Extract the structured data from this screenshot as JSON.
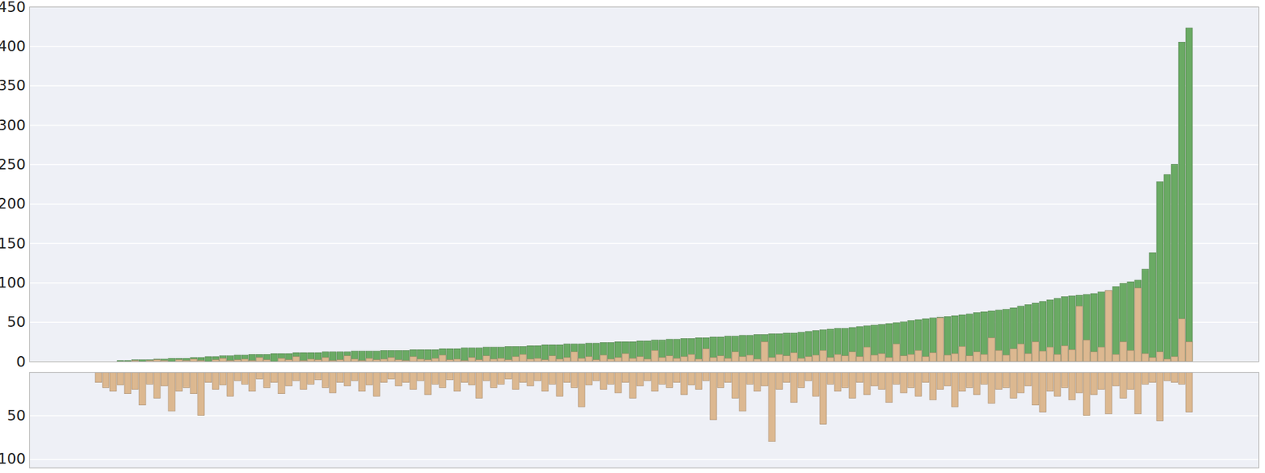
{
  "chart_data": [
    {
      "type": "bar",
      "tick_labels": "y",
      "grid": true,
      "ylim": [
        0,
        450
      ],
      "yticks": [
        0,
        50,
        100,
        150,
        200,
        250,
        300,
        350,
        400,
        450
      ],
      "categories": [
        null,
        null,
        null,
        null,
        null,
        null,
        null,
        null,
        null,
        null,
        null,
        null,
        null,
        null,
        null,
        null,
        null,
        null,
        null,
        null,
        null,
        null,
        null,
        null,
        null,
        null,
        null,
        null,
        null,
        null,
        null,
        null,
        null,
        null,
        null,
        null,
        null,
        null,
        null,
        null,
        null,
        null,
        null,
        null,
        null,
        null,
        null,
        null,
        null,
        null,
        null,
        null,
        null,
        null,
        null,
        null,
        null,
        null,
        null,
        null,
        null,
        null,
        null,
        null,
        null,
        null,
        null,
        null,
        null,
        null,
        null,
        null,
        null,
        null,
        null,
        null,
        null,
        null,
        null,
        null,
        null,
        null,
        null,
        null,
        null,
        null,
        null,
        null,
        null,
        null,
        null,
        null,
        null,
        null,
        null,
        null,
        null,
        null,
        null,
        null,
        null,
        null,
        null,
        null,
        null,
        null,
        null,
        null,
        null,
        null,
        null,
        null,
        null,
        null,
        null,
        null,
        null,
        null,
        null,
        null,
        null,
        null,
        null,
        null,
        null,
        null,
        null,
        null,
        null,
        null,
        null,
        null,
        null,
        null,
        null,
        null,
        null,
        null,
        null,
        null,
        null,
        null,
        null,
        null,
        null,
        null,
        null,
        null,
        null,
        null
      ],
      "series": [
        {
          "color": "#6aaa64",
          "values": [
            0,
            0,
            0,
            1,
            1,
            2,
            2,
            2,
            3,
            3,
            4,
            4,
            4,
            5,
            5,
            6,
            6,
            7,
            7,
            8,
            8,
            9,
            9,
            9,
            10,
            10,
            10,
            11,
            11,
            11,
            11,
            12,
            12,
            12,
            12,
            13,
            13,
            13,
            13,
            14,
            14,
            14,
            14,
            15,
            15,
            15,
            15,
            16,
            16,
            16,
            17,
            17,
            17,
            18,
            18,
            18,
            19,
            19,
            19,
            20,
            20,
            21,
            21,
            21,
            22,
            22,
            22,
            23,
            23,
            24,
            24,
            25,
            25,
            25,
            26,
            26,
            27,
            27,
            28,
            28,
            29,
            29,
            30,
            30,
            31,
            31,
            32,
            32,
            33,
            33,
            34,
            34,
            35,
            35,
            36,
            36,
            37,
            38,
            39,
            40,
            41,
            42,
            42,
            43,
            44,
            45,
            46,
            47,
            48,
            49,
            50,
            52,
            53,
            54,
            55,
            56,
            57,
            58,
            59,
            60,
            62,
            63,
            64,
            65,
            66,
            68,
            70,
            72,
            74,
            76,
            78,
            80,
            82,
            83,
            84,
            85,
            86,
            88,
            90,
            95,
            99,
            101,
            103,
            117,
            138,
            228,
            237,
            250,
            405,
            423
          ]
        },
        {
          "color": "#dcb890",
          "values": [
            0,
            0,
            0,
            0,
            0,
            1,
            0,
            1,
            2,
            1,
            0,
            2,
            1,
            3,
            1,
            0,
            2,
            4,
            1,
            2,
            3,
            1,
            5,
            2,
            0,
            4,
            2,
            6,
            1,
            3,
            2,
            5,
            1,
            2,
            7,
            3,
            1,
            4,
            2,
            3,
            5,
            2,
            1,
            6,
            3,
            2,
            4,
            8,
            2,
            3,
            1,
            5,
            2,
            7,
            3,
            4,
            2,
            6,
            9,
            3,
            4,
            2,
            7,
            3,
            5,
            12,
            4,
            6,
            2,
            8,
            3,
            5,
            10,
            4,
            6,
            3,
            14,
            5,
            7,
            4,
            6,
            9,
            3,
            16,
            5,
            7,
            4,
            12,
            6,
            8,
            3,
            25,
            5,
            9,
            7,
            11,
            4,
            6,
            8,
            14,
            5,
            9,
            7,
            12,
            6,
            18,
            8,
            10,
            5,
            22,
            7,
            9,
            14,
            6,
            11,
            55,
            8,
            10,
            19,
            7,
            12,
            9,
            30,
            14,
            8,
            16,
            22,
            10,
            25,
            13,
            18,
            9,
            20,
            15,
            70,
            27,
            12,
            18,
            90,
            9,
            25,
            14,
            93,
            10,
            5,
            12,
            3,
            6,
            54,
            25
          ]
        }
      ]
    },
    {
      "type": "bar",
      "tick_labels": "y",
      "grid": true,
      "ylim": [
        0,
        110
      ],
      "yticks": [
        50,
        100
      ],
      "categories": [
        null,
        null,
        null,
        null,
        null,
        null,
        null,
        null,
        null,
        null,
        null,
        null,
        null,
        null,
        null,
        null,
        null,
        null,
        null,
        null,
        null,
        null,
        null,
        null,
        null,
        null,
        null,
        null,
        null,
        null,
        null,
        null,
        null,
        null,
        null,
        null,
        null,
        null,
        null,
        null,
        null,
        null,
        null,
        null,
        null,
        null,
        null,
        null,
        null,
        null,
        null,
        null,
        null,
        null,
        null,
        null,
        null,
        null,
        null,
        null,
        null,
        null,
        null,
        null,
        null,
        null,
        null,
        null,
        null,
        null,
        null,
        null,
        null,
        null,
        null,
        null,
        null,
        null,
        null,
        null,
        null,
        null,
        null,
        null,
        null,
        null,
        null,
        null,
        null,
        null,
        null,
        null,
        null,
        null,
        null,
        null,
        null,
        null,
        null,
        null,
        null,
        null,
        null,
        null,
        null,
        null,
        null,
        null,
        null,
        null,
        null,
        null,
        null,
        null,
        null,
        null,
        null,
        null,
        null,
        null,
        null,
        null,
        null,
        null,
        null,
        null,
        null,
        null,
        null,
        null,
        null,
        null,
        null,
        null,
        null,
        null,
        null,
        null,
        null,
        null,
        null,
        null,
        null,
        null,
        null,
        null,
        null,
        null,
        null,
        null
      ],
      "color": "#dcb890",
      "values": [
        12,
        18,
        22,
        15,
        25,
        20,
        38,
        14,
        30,
        16,
        45,
        22,
        18,
        25,
        50,
        12,
        20,
        15,
        28,
        10,
        14,
        22,
        8,
        18,
        12,
        25,
        16,
        10,
        20,
        14,
        9,
        18,
        24,
        12,
        16,
        10,
        22,
        15,
        28,
        12,
        8,
        16,
        12,
        20,
        10,
        26,
        14,
        18,
        9,
        22,
        12,
        15,
        30,
        10,
        18,
        14,
        8,
        20,
        12,
        16,
        10,
        22,
        14,
        28,
        12,
        18,
        40,
        15,
        10,
        20,
        14,
        24,
        12,
        30,
        16,
        10,
        22,
        14,
        18,
        12,
        26,
        15,
        20,
        10,
        55,
        18,
        12,
        30,
        45,
        14,
        22,
        16,
        80,
        20,
        12,
        35,
        18,
        10,
        28,
        60,
        14,
        22,
        18,
        30,
        12,
        26,
        16,
        20,
        35,
        14,
        24,
        18,
        28,
        12,
        32,
        20,
        16,
        40,
        22,
        18,
        26,
        14,
        36,
        20,
        18,
        30,
        24,
        16,
        38,
        46,
        22,
        28,
        18,
        32,
        24,
        50,
        26,
        20,
        48,
        16,
        30,
        20,
        48,
        14,
        12,
        56,
        10,
        12,
        14,
        46
      ]
    }
  ]
}
